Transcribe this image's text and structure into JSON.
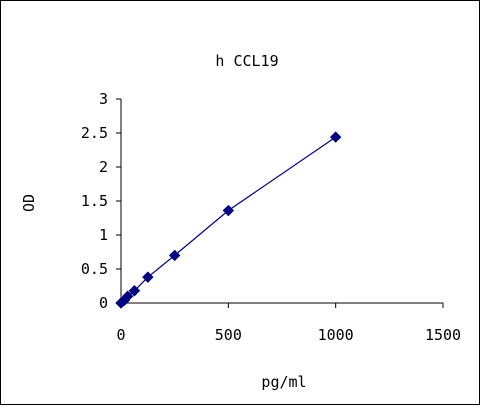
{
  "chart_data": {
    "type": "line",
    "title": "h CCL19",
    "xlabel": "pg/ml",
    "ylabel": "OD",
    "xlim": [
      0,
      1500
    ],
    "ylim": [
      0,
      3
    ],
    "xticks": [
      "0",
      "500",
      "1000",
      "1500"
    ],
    "yticks": [
      "0",
      "0.5",
      "1",
      "1.5",
      "2",
      "2.5",
      "3"
    ],
    "grid": false,
    "legend": "none",
    "series": [
      {
        "color": "#000080",
        "marker": "diamond",
        "x": [
          0,
          15.6,
          31.25,
          62.5,
          125,
          250,
          500,
          1000
        ],
        "y": [
          0.0,
          0.04,
          0.1,
          0.18,
          0.38,
          0.7,
          1.36,
          2.44
        ]
      }
    ]
  }
}
